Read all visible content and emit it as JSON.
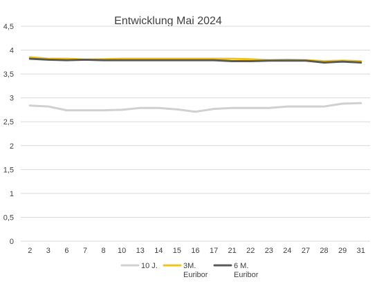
{
  "chart_data": {
    "type": "line",
    "title": "Entwicklung Mai 2024",
    "xlabel": "",
    "ylabel": "",
    "categories": [
      "2",
      "3",
      "6",
      "7",
      "8",
      "10",
      "13",
      "14",
      "15",
      "16",
      "17",
      "21",
      "22",
      "23",
      "24",
      "27",
      "28",
      "29",
      "31"
    ],
    "ylim": [
      0,
      4.5
    ],
    "yticks": [
      "0",
      "0,5",
      "1",
      "1,5",
      "2",
      "2,5",
      "3",
      "3,5",
      "4",
      "4,5"
    ],
    "ytick_values": [
      0,
      0.5,
      1,
      1.5,
      2,
      2.5,
      3,
      3.5,
      4,
      4.5
    ],
    "grid": true,
    "legend": "bottom",
    "series": [
      {
        "name": "10 J.",
        "color": "#d0d0d0",
        "values": [
          2.84,
          2.82,
          2.74,
          2.74,
          2.74,
          2.75,
          2.79,
          2.79,
          2.76,
          2.71,
          2.77,
          2.79,
          2.79,
          2.79,
          2.82,
          2.82,
          2.82,
          2.88,
          2.89
        ]
      },
      {
        "name": "3M. Euribor",
        "color": "#f0c419",
        "values": [
          3.85,
          3.82,
          3.82,
          3.8,
          3.81,
          3.82,
          3.82,
          3.82,
          3.82,
          3.82,
          3.82,
          3.82,
          3.81,
          3.79,
          3.8,
          3.79,
          3.77,
          3.78,
          3.77
        ]
      },
      {
        "name": "6 M. Euribor",
        "color": "#595959",
        "values": [
          3.82,
          3.8,
          3.79,
          3.8,
          3.79,
          3.79,
          3.79,
          3.79,
          3.79,
          3.79,
          3.79,
          3.77,
          3.77,
          3.78,
          3.78,
          3.78,
          3.74,
          3.76,
          3.74
        ]
      }
    ]
  },
  "legend": {
    "items": [
      {
        "line1": "10 J.",
        "line2": "",
        "color": "#d0d0d0"
      },
      {
        "line1": "3M.",
        "line2": "Euribor",
        "color": "#f0c419"
      },
      {
        "line1": "6 M.",
        "line2": "Euribor",
        "color": "#595959"
      }
    ]
  }
}
